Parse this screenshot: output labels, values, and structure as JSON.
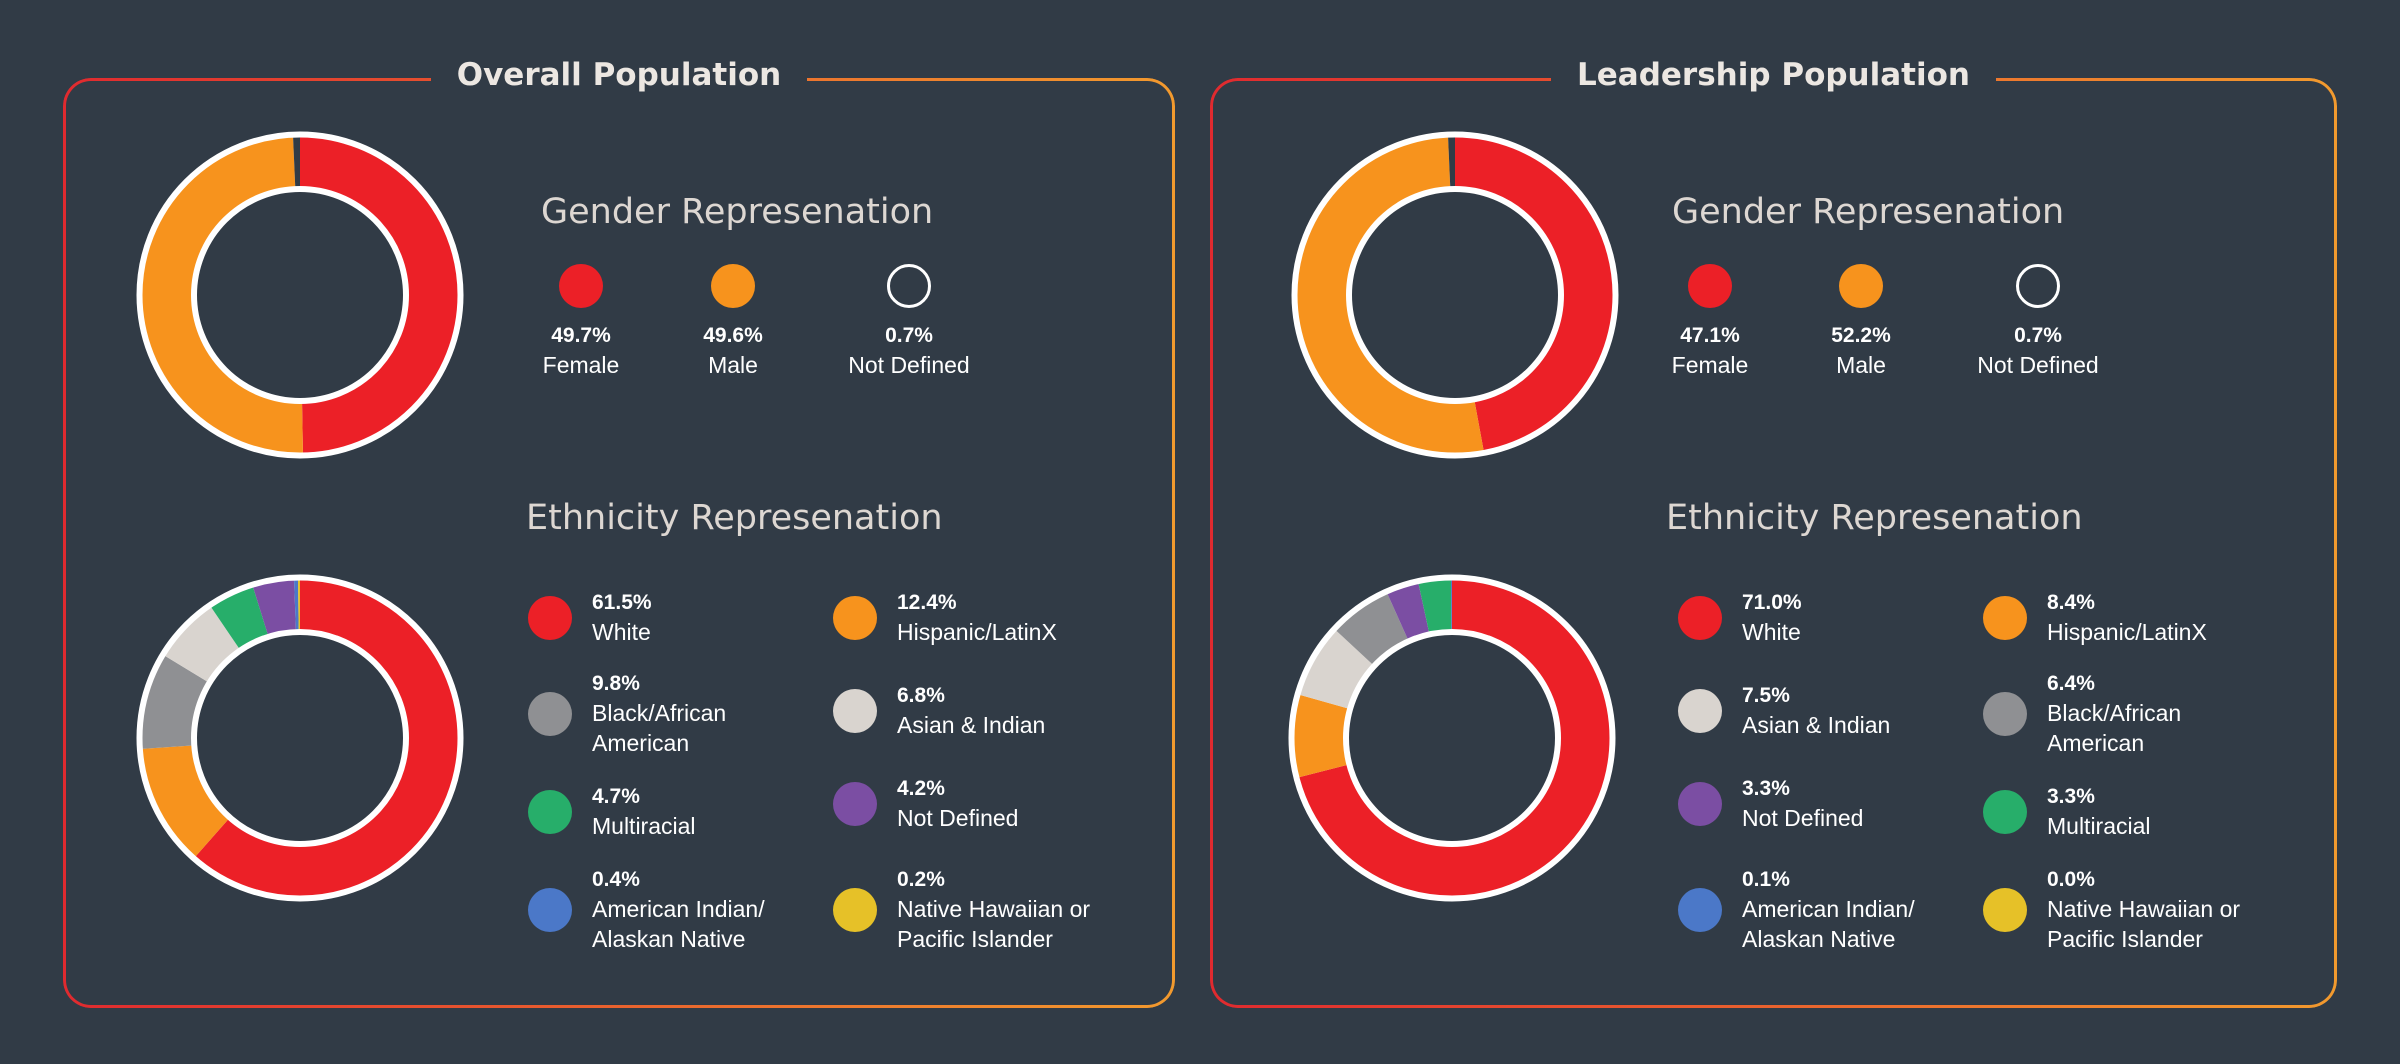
{
  "colors": {
    "female": "#ec2027",
    "male": "#f7931d",
    "not_defined_gender": "#313b46",
    "white": "#ec2027",
    "hispanic": "#f7931d",
    "black": "#8f9093",
    "asian": "#d9d4cf",
    "multiracial": "#27ae6a",
    "not_defined": "#7b4ea3",
    "american_indian": "#4b78c8",
    "native_hawaiian": "#e6c128"
  },
  "panels": [
    {
      "title": "Overall Population",
      "gender_title": "Gender Represenation",
      "ethnicity_title": "Ethnicity Represenation",
      "gender_items": [
        {
          "pct": "49.7%",
          "label": "Female"
        },
        {
          "pct": "49.6%",
          "label": "Male"
        },
        {
          "pct": "0.7%",
          "label": "Not Defined"
        }
      ],
      "ethnicity_items": [
        {
          "pct": "61.5%",
          "label": "White"
        },
        {
          "pct": "12.4%",
          "label": "Hispanic/LatinX"
        },
        {
          "pct": "9.8%",
          "label": "Black/African American"
        },
        {
          "pct": "6.8%",
          "label": "Asian & Indian"
        },
        {
          "pct": "4.7%",
          "label": "Multiracial"
        },
        {
          "pct": "4.2%",
          "label": "Not Defined"
        },
        {
          "pct": "0.4%",
          "label": "American Indian/ Alaskan Native"
        },
        {
          "pct": "0.2%",
          "label": "Native Hawaiian or Pacific Islander"
        }
      ]
    },
    {
      "title": "Leadership Population",
      "gender_title": "Gender Represenation",
      "ethnicity_title": "Ethnicity Represenation",
      "gender_items": [
        {
          "pct": "47.1%",
          "label": "Female"
        },
        {
          "pct": "52.2%",
          "label": "Male"
        },
        {
          "pct": "0.7%",
          "label": "Not Defined"
        }
      ],
      "ethnicity_items": [
        {
          "pct": "71.0%",
          "label": "White"
        },
        {
          "pct": "8.4%",
          "label": "Hispanic/LatinX"
        },
        {
          "pct": "7.5%",
          "label": "Asian & Indian"
        },
        {
          "pct": "6.4%",
          "label": "Black/African American"
        },
        {
          "pct": "3.3%",
          "label": "Not Defined"
        },
        {
          "pct": "3.3%",
          "label": "Multiracial"
        },
        {
          "pct": "0.1%",
          "label": "American Indian/ Alaskan Native"
        },
        {
          "pct": "0.0%",
          "label": "Native Hawaiian or Pacific Islander"
        }
      ]
    }
  ],
  "chart_data": [
    {
      "type": "pie",
      "title": "Overall Population - Gender Represenation",
      "categories": [
        "Female",
        "Male",
        "Not Defined"
      ],
      "values": [
        49.7,
        49.6,
        0.7
      ]
    },
    {
      "type": "pie",
      "title": "Overall Population - Ethnicity Represenation",
      "categories": [
        "White",
        "Hispanic/LatinX",
        "Black/African American",
        "Asian & Indian",
        "Multiracial",
        "Not Defined",
        "American Indian/ Alaskan Native",
        "Native Hawaiian or Pacific Islander"
      ],
      "values": [
        61.5,
        12.4,
        9.8,
        6.8,
        4.7,
        4.2,
        0.4,
        0.2
      ]
    },
    {
      "type": "pie",
      "title": "Leadership Population - Gender Represenation",
      "categories": [
        "Female",
        "Male",
        "Not Defined"
      ],
      "values": [
        47.1,
        52.2,
        0.7
      ]
    },
    {
      "type": "pie",
      "title": "Leadership Population - Ethnicity Represenation",
      "categories": [
        "White",
        "Hispanic/LatinX",
        "Asian & Indian",
        "Black/African American",
        "Not Defined",
        "Multiracial",
        "American Indian/ Alaskan Native",
        "Native Hawaiian or Pacific Islander"
      ],
      "values": [
        71.0,
        8.4,
        7.5,
        6.4,
        3.3,
        3.3,
        0.1,
        0.0
      ]
    }
  ]
}
